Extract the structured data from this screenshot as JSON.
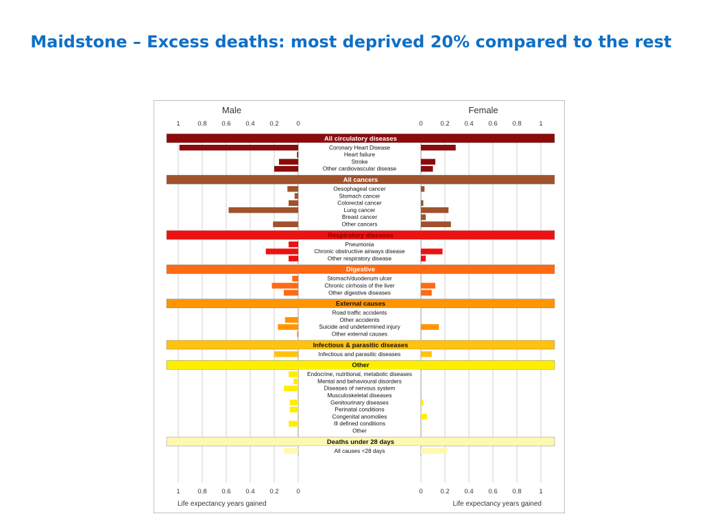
{
  "title": "Maidstone – Excess deaths: most deprived 20% compared to the rest",
  "chart_data": {
    "type": "bar",
    "orientation": "horizontal-butterfly",
    "left_title": "Male",
    "right_title": "Female",
    "left_xlabel": "Life expectancy years gained",
    "right_xlabel": "Life expectancy years gained",
    "xlim": [
      0,
      1
    ],
    "tick_values": [
      1,
      0.8,
      0.6,
      0.4,
      0.2,
      0
    ],
    "tick_labels": [
      "1",
      "0.8",
      "0.6",
      "0.4",
      "0.2",
      "0"
    ],
    "right_tick_values": [
      0,
      0.2,
      0.4,
      0.6,
      0.8,
      1
    ],
    "right_tick_labels": [
      "0",
      "0.2",
      "0.4",
      "0.6",
      "0.8",
      "1"
    ],
    "grid": true,
    "groups": [
      {
        "name": "All circulatory diseases",
        "color": "#8b0b0b",
        "text_color": "#ffffff",
        "items": [
          {
            "label": "Coronary Heart Disease",
            "male": 0.99,
            "female": 0.29
          },
          {
            "label": "Heart failure",
            "male": 0.01,
            "female": 0.0
          },
          {
            "label": "Stroke",
            "male": 0.16,
            "female": 0.12
          },
          {
            "label": "Other cardiovascular disease",
            "male": 0.2,
            "female": 0.1
          }
        ]
      },
      {
        "name": "All cancers",
        "color": "#a0522d",
        "text_color": "#ffffff",
        "items": [
          {
            "label": "Oesophageal cancer",
            "male": 0.09,
            "female": 0.03
          },
          {
            "label": "Stomach cancer",
            "male": 0.03,
            "female": 0.0
          },
          {
            "label": "Colorectal cancer",
            "male": 0.08,
            "female": 0.02
          },
          {
            "label": "Lung cancer",
            "male": 0.58,
            "female": 0.23
          },
          {
            "label": "Breast cancer",
            "male": 0.0,
            "female": 0.04
          },
          {
            "label": "Other cancers",
            "male": 0.21,
            "female": 0.25
          }
        ]
      },
      {
        "name": "Respiratory diseases",
        "color": "#ee1111",
        "text_color": "#8b0000",
        "items": [
          {
            "label": "Pneumonia",
            "male": 0.08,
            "female": 0.0
          },
          {
            "label": "Chronic obstructive airways disease",
            "male": 0.27,
            "female": 0.18
          },
          {
            "label": "Other respiratory disease",
            "male": 0.08,
            "female": 0.04
          }
        ]
      },
      {
        "name": "Digestive",
        "color": "#ff6a13",
        "text_color": "#ffffff",
        "items": [
          {
            "label": "Stomach/duodenum ulcer",
            "male": 0.05,
            "female": 0.0
          },
          {
            "label": "Chronic cirrhosis of the liver",
            "male": 0.22,
            "female": 0.12
          },
          {
            "label": "Other digestive diseases",
            "male": 0.12,
            "female": 0.09
          }
        ]
      },
      {
        "name": "External causes",
        "color": "#ff9500",
        "text_color": "#111111",
        "items": [
          {
            "label": "Road traffic accidents",
            "male": 0.0,
            "female": 0.0
          },
          {
            "label": "Other accidents",
            "male": 0.11,
            "female": 0.0
          },
          {
            "label": "Suicide and undetermined injury",
            "male": 0.17,
            "female": 0.15
          },
          {
            "label": "Other external causes",
            "male": 0.01,
            "female": 0.0
          }
        ]
      },
      {
        "name": "Infectious & parasitic diseases",
        "color": "#ffc20e",
        "text_color": "#111111",
        "items": [
          {
            "label": "Infectious and parasitic diseases",
            "male": 0.2,
            "female": 0.09
          }
        ]
      },
      {
        "name": "Other",
        "color": "#ffee00",
        "text_color": "#111111",
        "items": [
          {
            "label": "Endocrine, nutritional, metabolic diseases",
            "male": 0.08,
            "female": 0.0
          },
          {
            "label": "Mental and behavioural disorders",
            "male": 0.04,
            "female": 0.0
          },
          {
            "label": "Diseases of nervous system",
            "male": 0.12,
            "female": 0.0
          },
          {
            "label": "Musculoskeletal diseases",
            "male": 0.0,
            "female": 0.0
          },
          {
            "label": "Genitourinary diseases",
            "male": 0.07,
            "female": 0.02
          },
          {
            "label": "Perinatal conditions",
            "male": 0.07,
            "female": 0.0
          },
          {
            "label": "Congenital anomolies",
            "male": 0.0,
            "female": 0.05
          },
          {
            "label": "Ill defined conditions",
            "male": 0.08,
            "female": 0.0
          },
          {
            "label": "Other",
            "male": 0.0,
            "female": 0.0
          }
        ]
      },
      {
        "name": "Deaths under 28 days",
        "color": "#fff8b0",
        "text_color": "#111111",
        "items": [
          {
            "label": "All causes <28 days",
            "male": 0.12,
            "female": 0.22
          }
        ]
      }
    ]
  }
}
